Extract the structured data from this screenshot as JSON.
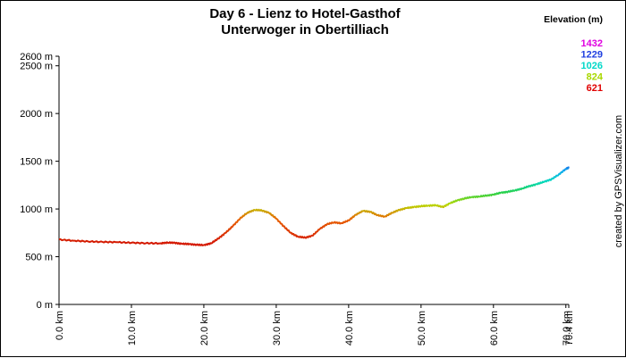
{
  "chart_data": {
    "type": "line",
    "title": [
      "Day 6 - Lienz to  Hotel-Gasthof",
      "Unterwoger in Obertilliach"
    ],
    "xlabel": "",
    "ylabel": "",
    "xlim": [
      0,
      70.4
    ],
    "ylim": [
      0,
      2600
    ],
    "x_ticks": [
      "0.0 km",
      "10.0 km",
      "20.0 km",
      "30.0 km",
      "40.0 km",
      "50.0 km",
      "60.0 km",
      "70.0 km",
      "70.4 km"
    ],
    "x_tick_values": [
      0,
      10,
      20,
      30,
      40,
      50,
      60,
      70,
      70.4
    ],
    "y_ticks": [
      "0 m",
      "500 m",
      "1000 m",
      "1500 m",
      "2000 m",
      "2500 m",
      "2600 m"
    ],
    "y_tick_values": [
      0,
      500,
      1000,
      1500,
      2000,
      2500,
      2600
    ],
    "legend": {
      "title": "Elevation (m)",
      "position": "top-right",
      "items": [
        {
          "label": "1432",
          "color": "#e000e0"
        },
        {
          "label": "1229",
          "color": "#2040e0"
        },
        {
          "label": "1026",
          "color": "#00d8c8"
        },
        {
          "label": "824",
          "color": "#a8d800"
        },
        {
          "label": "621",
          "color": "#e00000"
        }
      ]
    },
    "credit": "created by GPSVisualizer.com",
    "series": [
      {
        "x": [
          0,
          2,
          4,
          6,
          8,
          10,
          12,
          14,
          15,
          16,
          17,
          18,
          19,
          20,
          21,
          22,
          23,
          24,
          25,
          26,
          27,
          28,
          29,
          30,
          31,
          32,
          33,
          34,
          35,
          36,
          37,
          38,
          39,
          40,
          41,
          42,
          43,
          44,
          45,
          46,
          47,
          48,
          49,
          50,
          51,
          52,
          53,
          54,
          55,
          56,
          57,
          58,
          59,
          60,
          61,
          62,
          63,
          64,
          65,
          66,
          67,
          68,
          69,
          70,
          70.4
        ],
        "values": [
          680,
          668,
          660,
          655,
          652,
          646,
          642,
          640,
          648,
          645,
          635,
          632,
          625,
          622,
          640,
          690,
          750,
          820,
          900,
          960,
          990,
          985,
          960,
          900,
          820,
          750,
          710,
          700,
          720,
          790,
          840,
          860,
          850,
          880,
          940,
          980,
          970,
          935,
          920,
          960,
          990,
          1010,
          1020,
          1030,
          1035,
          1040,
          1020,
          1060,
          1090,
          1110,
          1125,
          1130,
          1140,
          1150,
          1170,
          1180,
          1195,
          1215,
          1240,
          1260,
          1285,
          1310,
          1360,
          1420,
          1432
        ]
      }
    ]
  }
}
